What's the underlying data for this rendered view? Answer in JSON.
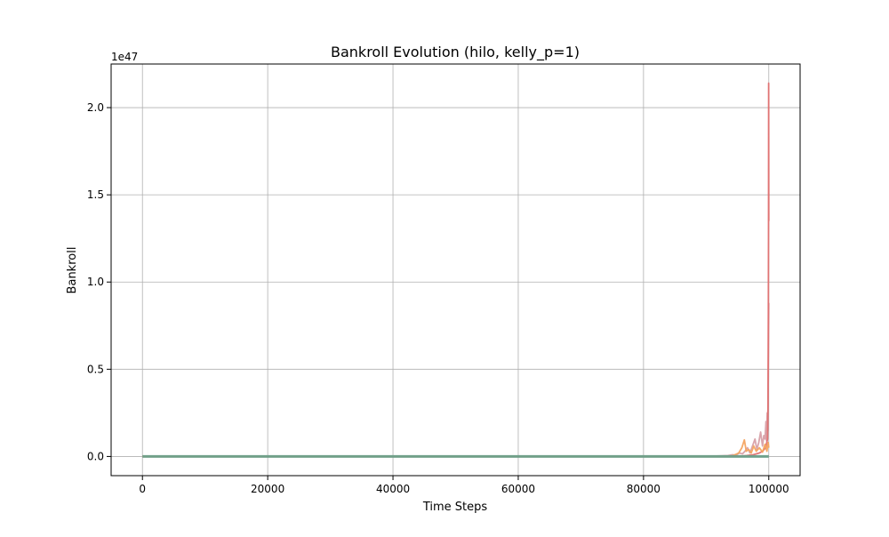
{
  "chart_data": {
    "type": "line",
    "title": "Bankroll Evolution (hilo, kelly_p=1)",
    "xlabel": "Time Steps",
    "ylabel": "Bankroll",
    "y_offset_label": "1e47",
    "y_scale_exponent": 47,
    "xlim": [
      -5000,
      105000
    ],
    "ylim": [
      -0.11,
      2.25
    ],
    "x_ticks": [
      0,
      20000,
      40000,
      60000,
      80000,
      100000
    ],
    "x_tick_labels": [
      "0",
      "20000",
      "40000",
      "60000",
      "80000",
      "100000"
    ],
    "y_ticks": [
      0.0,
      0.5,
      1.0,
      1.5,
      2.0
    ],
    "y_tick_labels": [
      "0.0",
      "0.5",
      "1.0",
      "1.5",
      "2.0"
    ],
    "grid": true,
    "legend": "none",
    "series": [
      {
        "color": "#d8a0a8",
        "x": [
          0,
          90000,
          93500,
          94200,
          94800,
          95300,
          95800,
          96200,
          96600,
          97000,
          97400,
          97800,
          98100,
          98400,
          98700,
          99000,
          99200,
          99400,
          99550,
          99650,
          99750,
          99850,
          99900,
          99950,
          100000
        ],
        "y": [
          0,
          0,
          0.005,
          0.01,
          0.008,
          0.02,
          0.015,
          0.03,
          0.05,
          0.02,
          0.06,
          0.1,
          0.04,
          0.08,
          0.14,
          0.06,
          0.12,
          0.1,
          0.2,
          0.09,
          0.25,
          0.15,
          0.4,
          0.6,
          0.88
        ]
      },
      {
        "color": "#e07070",
        "x": [
          0,
          95000,
          96500,
          97500,
          98500,
          99000,
          99500,
          99800,
          99880,
          99930,
          99960,
          99980,
          100000
        ],
        "y": [
          0,
          0,
          0.005,
          0.01,
          0.02,
          0.03,
          0.05,
          0.1,
          0.3,
          0.8,
          1.3,
          2.14,
          1.35
        ]
      },
      {
        "color": "#f4a460",
        "x": [
          0,
          93800,
          94500,
          95200,
          95700,
          96100,
          96400,
          96800,
          97200,
          97600,
          98000,
          98500,
          99000,
          99400,
          99700,
          99900,
          100000
        ],
        "y": [
          0,
          0,
          0.008,
          0.02,
          0.05,
          0.095,
          0.03,
          0.04,
          0.02,
          0.06,
          0.03,
          0.05,
          0.025,
          0.07,
          0.03,
          0.08,
          0.05
        ]
      },
      {
        "color": "#6a9f8a",
        "x": [
          0,
          100000
        ],
        "y": [
          0,
          0
        ]
      }
    ]
  }
}
